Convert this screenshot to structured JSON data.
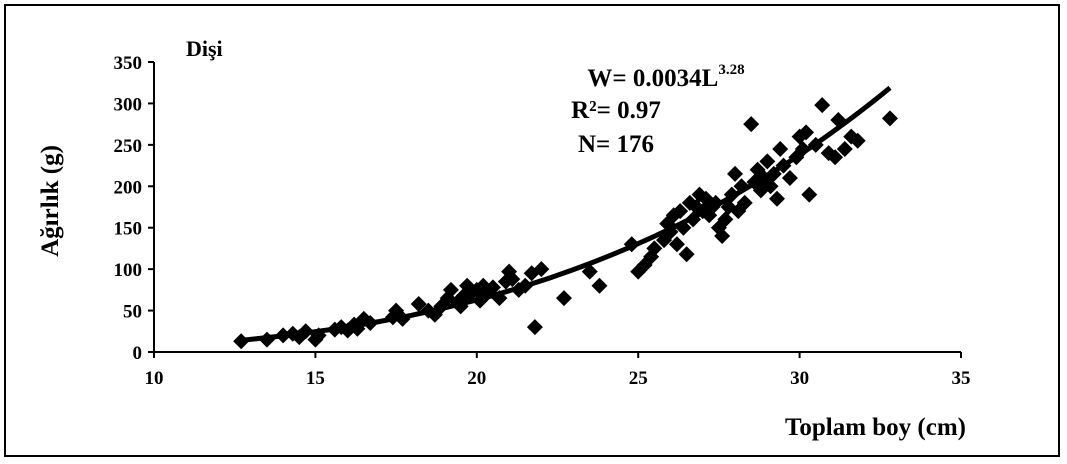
{
  "chart_data": {
    "type": "scatter",
    "subtitle": "Dişi",
    "xlabel": "Toplam boy (cm)",
    "ylabel": "Ağırlık (g)",
    "xlim": [
      10,
      35
    ],
    "ylim": [
      0,
      350
    ],
    "xticks": [
      "10",
      "15",
      "20",
      "25",
      "30",
      "35"
    ],
    "yticks": [
      "0",
      "50",
      "100",
      "150",
      "200",
      "250",
      "300",
      "350"
    ],
    "grid": false,
    "legend": "none",
    "marker": "diamond",
    "marker_color": "#000000",
    "annotation": {
      "eq_prefix": "W= 0.0034L",
      "eq_exponent": "3.28",
      "r2": "R²= 0.97",
      "n": "N= 176"
    },
    "fit": {
      "a": 0.0034,
      "b": 3.28,
      "x_range": [
        12.7,
        32.8
      ]
    },
    "points": [
      [
        12.7,
        13
      ],
      [
        13.5,
        15
      ],
      [
        14.0,
        20
      ],
      [
        14.3,
        22
      ],
      [
        14.5,
        18
      ],
      [
        14.7,
        25
      ],
      [
        15.0,
        15
      ],
      [
        15.1,
        20
      ],
      [
        15.6,
        27
      ],
      [
        15.8,
        30
      ],
      [
        16.0,
        26
      ],
      [
        16.2,
        33
      ],
      [
        16.3,
        28
      ],
      [
        16.5,
        40
      ],
      [
        16.7,
        35
      ],
      [
        17.4,
        42
      ],
      [
        17.5,
        50
      ],
      [
        17.7,
        40
      ],
      [
        18.2,
        58
      ],
      [
        18.5,
        50
      ],
      [
        18.7,
        45
      ],
      [
        18.9,
        55
      ],
      [
        19.1,
        65
      ],
      [
        19.2,
        75
      ],
      [
        19.4,
        60
      ],
      [
        19.5,
        55
      ],
      [
        19.6,
        68
      ],
      [
        19.7,
        80
      ],
      [
        19.8,
        70
      ],
      [
        20.0,
        75
      ],
      [
        20.1,
        62
      ],
      [
        20.2,
        80
      ],
      [
        20.3,
        70
      ],
      [
        20.5,
        78
      ],
      [
        20.7,
        65
      ],
      [
        20.9,
        85
      ],
      [
        21.0,
        97
      ],
      [
        21.1,
        88
      ],
      [
        21.3,
        75
      ],
      [
        21.5,
        80
      ],
      [
        21.7,
        95
      ],
      [
        21.8,
        30
      ],
      [
        22.0,
        100
      ],
      [
        22.7,
        65
      ],
      [
        23.5,
        97
      ],
      [
        23.8,
        80
      ],
      [
        24.8,
        130
      ],
      [
        25.0,
        97
      ],
      [
        25.2,
        105
      ],
      [
        25.4,
        115
      ],
      [
        25.5,
        125
      ],
      [
        25.8,
        135
      ],
      [
        25.9,
        155
      ],
      [
        26.0,
        145
      ],
      [
        26.1,
        165
      ],
      [
        26.2,
        130
      ],
      [
        26.3,
        170
      ],
      [
        26.4,
        150
      ],
      [
        26.5,
        118
      ],
      [
        26.6,
        180
      ],
      [
        26.7,
        160
      ],
      [
        26.8,
        175
      ],
      [
        26.9,
        190
      ],
      [
        27.0,
        170
      ],
      [
        27.1,
        185
      ],
      [
        27.2,
        165
      ],
      [
        27.3,
        175
      ],
      [
        27.4,
        180
      ],
      [
        27.5,
        150
      ],
      [
        27.6,
        140
      ],
      [
        27.7,
        160
      ],
      [
        27.8,
        175
      ],
      [
        27.9,
        190
      ],
      [
        28.0,
        215
      ],
      [
        28.1,
        170
      ],
      [
        28.2,
        200
      ],
      [
        28.3,
        180
      ],
      [
        28.5,
        275
      ],
      [
        28.6,
        205
      ],
      [
        28.7,
        220
      ],
      [
        28.8,
        195
      ],
      [
        28.9,
        210
      ],
      [
        29.0,
        230
      ],
      [
        29.1,
        200
      ],
      [
        29.2,
        215
      ],
      [
        29.3,
        185
      ],
      [
        29.4,
        245
      ],
      [
        29.5,
        225
      ],
      [
        29.7,
        210
      ],
      [
        29.9,
        235
      ],
      [
        30.0,
        260
      ],
      [
        30.1,
        245
      ],
      [
        30.2,
        265
      ],
      [
        30.3,
        190
      ],
      [
        30.5,
        250
      ],
      [
        30.7,
        298
      ],
      [
        30.9,
        240
      ],
      [
        31.1,
        235
      ],
      [
        31.2,
        280
      ],
      [
        31.4,
        245
      ],
      [
        31.6,
        260
      ],
      [
        31.8,
        255
      ],
      [
        32.8,
        282
      ]
    ]
  }
}
